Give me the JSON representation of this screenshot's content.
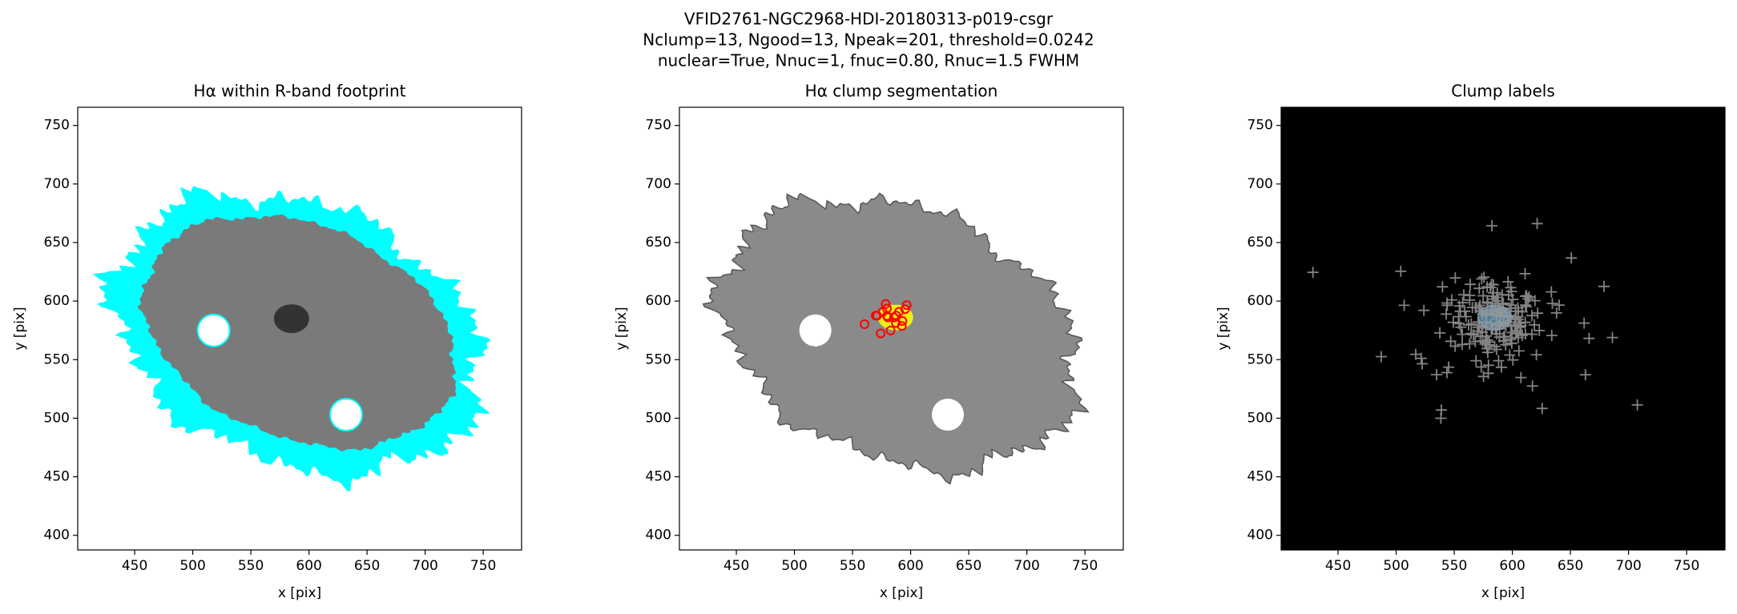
{
  "suptitle": [
    "VFID2761-NGC2968-HDI-20180313-p019-csgr",
    "Nclump=13, Ngood=13, Npeak=201, threshold=0.0242",
    "nuclear=True, Nnuc=1, fnuc=0.80, Rnuc=1.5 FWHM"
  ],
  "chart_data": [
    {
      "type": "image",
      "title": "Hα within R-band footprint",
      "xlabel": "x [pix]",
      "ylabel": "y [pix]",
      "xlim": [
        401,
        783
      ],
      "ylim": [
        387.5,
        765.5
      ],
      "xticks": [
        450,
        500,
        550,
        600,
        650,
        700,
        750
      ],
      "yticks": [
        400,
        450,
        500,
        550,
        600,
        650,
        700,
        750
      ],
      "background": "#ffffff",
      "footprint_color": "#00ffff"
    },
    {
      "type": "image",
      "title": "Hα clump segmentation",
      "xlabel": "x [pix]",
      "ylabel": "y [pix]",
      "xlim": [
        401,
        783
      ],
      "ylim": [
        387.5,
        765.5
      ],
      "xticks": [
        450,
        500,
        550,
        600,
        650,
        700,
        750
      ],
      "yticks": [
        400,
        450,
        500,
        550,
        600,
        650,
        700,
        750
      ],
      "background": "#ffffff",
      "clump_color": "#ff0000"
    },
    {
      "type": "image",
      "title": "Clump labels",
      "xlabel": "x [pix]",
      "ylabel": "y [pix]",
      "xlim": [
        401,
        783
      ],
      "ylim": [
        387.5,
        765.5
      ],
      "xticks": [
        450,
        500,
        550,
        600,
        650,
        700,
        750
      ],
      "yticks": [
        400,
        450,
        500,
        550,
        600,
        650,
        700,
        750
      ],
      "background": "#000000",
      "peak_color": "#9a9a9a"
    }
  ]
}
